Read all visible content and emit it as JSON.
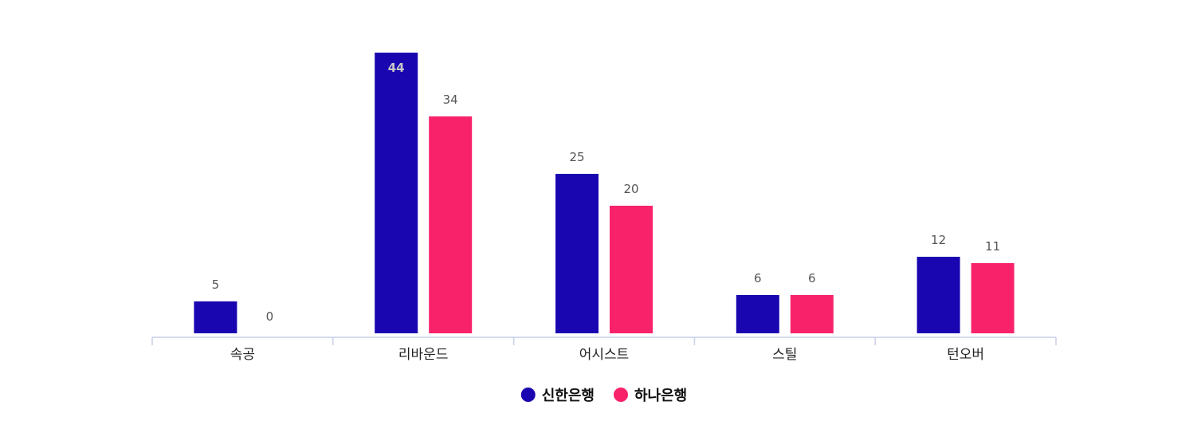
{
  "chart_data": {
    "type": "bar",
    "categories": [
      "속공",
      "리바운드",
      "어시스트",
      "스틸",
      "턴오버"
    ],
    "series": [
      {
        "name": "신한은행",
        "color": "#1a06b0",
        "values": [
          5,
          44,
          25,
          6,
          12
        ]
      },
      {
        "name": "하나은행",
        "color": "#f8226b",
        "values": [
          0,
          34,
          20,
          6,
          11
        ]
      }
    ],
    "ylim": [
      0,
      44
    ],
    "grid": false,
    "legend_position": "bottom-center",
    "axis_color": "#c9cfe8"
  }
}
